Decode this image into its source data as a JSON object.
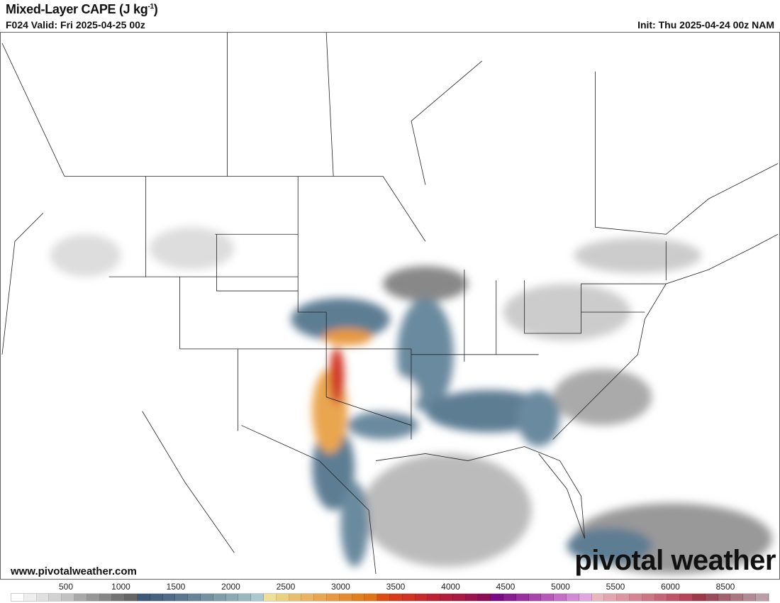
{
  "header": {
    "title": "Mixed-Layer CAPE (J kg",
    "title_sup": "-1",
    "title_end": ")",
    "valid": "F024 Valid: Fri 2025-04-25 00z",
    "init": "Init: Thu 2025-04-24 00z NAM"
  },
  "footer": {
    "website": "www.pivotalweather.com",
    "watermark": "pivotal weather"
  },
  "colorbar": {
    "labels": [
      "500",
      "1000",
      "1500",
      "2000",
      "2500",
      "3000",
      "3500",
      "4000",
      "4500",
      "5000",
      "5500",
      "6000",
      "8500"
    ],
    "colors": [
      "#ffffff",
      "#eeeeee",
      "#e0e0e0",
      "#d2d2d2",
      "#c2c2c2",
      "#a8a8a8",
      "#969696",
      "#868686",
      "#747474",
      "#666666",
      "#3d5a78",
      "#45627f",
      "#4e6c87",
      "#5a7890",
      "#668599",
      "#7391a2",
      "#7f9eab",
      "#8caab5",
      "#99b7be",
      "#a9c8d0",
      "#efe096",
      "#ebd07f",
      "#e8c06d",
      "#e9b360",
      "#e9a64f",
      "#e8993f",
      "#e58d2e",
      "#e17f1f",
      "#e07316",
      "#dc4c14",
      "#d73b1c",
      "#d03224",
      "#c8292b",
      "#be2133",
      "#b31c3b",
      "#a81a44",
      "#9d134d",
      "#8e0c56",
      "#7a0a85",
      "#8a1d92",
      "#9a30a0",
      "#a844ac",
      "#b658b8",
      "#c46fc6",
      "#d28ad4",
      "#e0a6e0",
      "#e9b6be",
      "#e3a6b0",
      "#dc96a2",
      "#d58593",
      "#cd7585",
      "#c66577",
      "#bf5468",
      "#b7445a",
      "#a0384c",
      "#9b4c5c",
      "#a2616f",
      "#aa7682",
      "#b28a95",
      "#ba9ea8"
    ]
  },
  "map": {
    "colors": {
      "low": "#bdbdbd",
      "mid": "#5d7d93",
      "high": "#e8993f",
      "extreme": "#d03224"
    }
  }
}
